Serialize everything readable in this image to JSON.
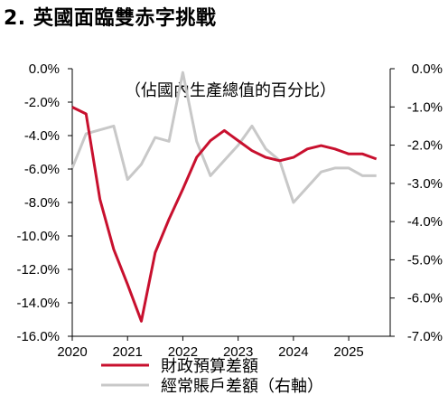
{
  "title": "2. 英國面臨雙赤字挑戰",
  "chart_data": {
    "type": "line",
    "annotation": "（佔國內生產總值的百分比）",
    "x_ticks": [
      "2020",
      "2021",
      "2022",
      "2023",
      "2024",
      "2025"
    ],
    "xlim": [
      2020,
      2025.75
    ],
    "y_left": {
      "ticks": [
        "0.0%",
        "-2.0%",
        "-4.0%",
        "-6.0%",
        "-8.0%",
        "-10.0%",
        "-12.0%",
        "-14.0%",
        "-16.0%"
      ],
      "ylim": [
        -16,
        0
      ]
    },
    "y_right": {
      "ticks": [
        "0.0%",
        "-1.0%",
        "-2.0%",
        "-3.0%",
        "-4.0%",
        "-5.0%",
        "-6.0%",
        "-7.0%"
      ],
      "ylim": [
        -7,
        0
      ]
    },
    "grid": false,
    "legend_position": "bottom",
    "series": [
      {
        "name": "財政預算差額",
        "axis": "left",
        "color": "#c8102e",
        "x": [
          2020.0,
          2020.25,
          2020.5,
          2020.75,
          2021.0,
          2021.25,
          2021.5,
          2021.75,
          2022.0,
          2022.25,
          2022.5,
          2022.75,
          2023.0,
          2023.25,
          2023.5,
          2023.75,
          2024.0,
          2024.25,
          2024.5,
          2024.75,
          2025.0,
          2025.25,
          2025.5
        ],
        "values": [
          -2.3,
          -2.7,
          -7.8,
          -10.8,
          -12.9,
          -15.1,
          -11.0,
          -9.0,
          -7.2,
          -5.3,
          -4.3,
          -3.7,
          -4.3,
          -4.9,
          -5.3,
          -5.5,
          -5.3,
          -4.8,
          -4.6,
          -4.8,
          -5.1,
          -5.1,
          -5.4
        ]
      },
      {
        "name": "經常賬戶差額（右軸）",
        "axis": "right",
        "color": "#c8c8c8",
        "x": [
          2020.0,
          2020.25,
          2020.5,
          2020.75,
          2021.0,
          2021.25,
          2021.5,
          2021.75,
          2022.0,
          2022.25,
          2022.5,
          2022.75,
          2023.0,
          2023.25,
          2023.5,
          2023.75,
          2024.0,
          2024.25,
          2024.5,
          2024.75,
          2025.0,
          2025.25,
          2025.5
        ],
        "values": [
          -2.6,
          -1.7,
          -1.6,
          -1.5,
          -2.9,
          -2.5,
          -1.8,
          -1.9,
          -0.1,
          -1.9,
          -2.8,
          -2.4,
          -2.0,
          -1.5,
          -2.1,
          -2.4,
          -3.5,
          -3.1,
          -2.7,
          -2.6,
          -2.6,
          -2.8,
          -2.8
        ]
      }
    ]
  }
}
